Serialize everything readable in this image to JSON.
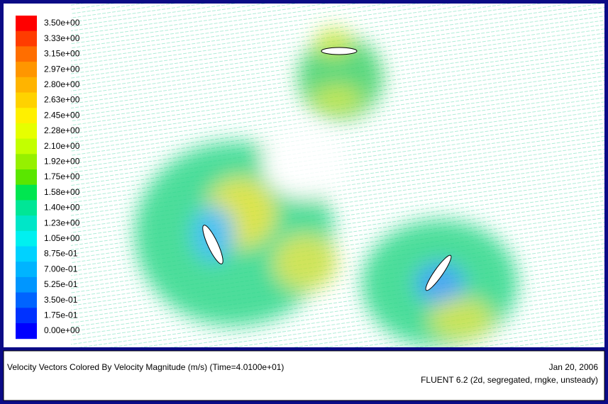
{
  "colorbar": {
    "labels": [
      "3.50e+00",
      "3.33e+00",
      "3.15e+00",
      "2.97e+00",
      "2.80e+00",
      "2.63e+00",
      "2.45e+00",
      "2.28e+00",
      "2.10e+00",
      "1.92e+00",
      "1.75e+00",
      "1.58e+00",
      "1.40e+00",
      "1.23e+00",
      "1.05e+00",
      "8.75e-01",
      "7.00e-01",
      "5.25e-01",
      "3.50e-01",
      "1.75e-01",
      "0.00e+00"
    ],
    "colors": [
      "#ff0000",
      "#ff3c00",
      "#ff6e00",
      "#ff9600",
      "#ffb400",
      "#ffd200",
      "#fff000",
      "#e6ff00",
      "#c3ff00",
      "#96f000",
      "#5ae600",
      "#00e650",
      "#00e696",
      "#00e6c8",
      "#00f0f0",
      "#00d2ff",
      "#00b4ff",
      "#0096ff",
      "#0064ff",
      "#0032ff",
      "#0000ff"
    ]
  },
  "footer": {
    "caption": "Velocity Vectors Colored By Velocity Magnitude (m/s)  (Time=4.0100e+01)",
    "date": "Jan 20, 2006",
    "solver": "FLUENT 6.2 (2d, segregated, rngke, unsteady)"
  }
}
